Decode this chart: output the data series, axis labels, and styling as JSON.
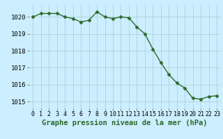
{
  "x": [
    0,
    1,
    2,
    3,
    4,
    5,
    6,
    7,
    8,
    9,
    10,
    11,
    12,
    13,
    14,
    15,
    16,
    17,
    18,
    19,
    20,
    21,
    22,
    23
  ],
  "y": [
    1020.0,
    1020.2,
    1020.2,
    1020.2,
    1020.0,
    1019.9,
    1019.7,
    1019.8,
    1020.3,
    1020.0,
    1019.9,
    1020.0,
    1019.95,
    1019.4,
    1019.0,
    1018.1,
    1017.3,
    1016.6,
    1016.1,
    1015.8,
    1015.2,
    1015.15,
    1015.3,
    1015.35
  ],
  "line_color": "#2d6a2d",
  "marker": "D",
  "marker_size": 2.5,
  "background_color": "#cceeff",
  "grid_color": "#aacccc",
  "xlabel": "Graphe pression niveau de la mer (hPa)",
  "xlabel_fontsize": 7.5,
  "ylim": [
    1014.6,
    1020.75
  ],
  "yticks": [
    1015,
    1016,
    1017,
    1018,
    1019,
    1020
  ],
  "xticks": [
    0,
    1,
    2,
    3,
    4,
    5,
    6,
    7,
    8,
    9,
    10,
    11,
    12,
    13,
    14,
    15,
    16,
    17,
    18,
    19,
    20,
    21,
    22,
    23
  ],
  "tick_fontsize": 6,
  "ytick_fontsize": 6.5,
  "line_width": 1.0
}
